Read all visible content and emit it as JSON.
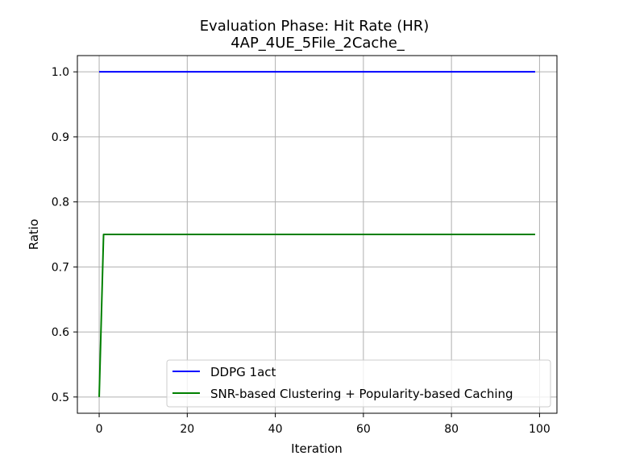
{
  "chart_data": {
    "type": "line",
    "title": "Evaluation Phase: Hit Rate (HR)",
    "subtitle": "4AP_4UE_5File_2Cache_",
    "xlabel": "Iteration",
    "ylabel": "Ratio",
    "xlim": [
      -4.95,
      103.95
    ],
    "ylim": [
      0.475,
      1.025
    ],
    "xticks": [
      0,
      20,
      40,
      60,
      80,
      100
    ],
    "xtick_labels": [
      "0",
      "20",
      "40",
      "60",
      "80",
      "100"
    ],
    "yticks": [
      0.5,
      0.6,
      0.7,
      0.8,
      0.9,
      1.0
    ],
    "ytick_labels": [
      "0.5",
      "0.6",
      "0.7",
      "0.8",
      "0.9",
      "1.0"
    ],
    "grid": true,
    "legend_position": "lower-right",
    "series": [
      {
        "name": "DDPG 1act",
        "color": "#0000ff",
        "points": [
          [
            0,
            1.0
          ],
          [
            99,
            1.0
          ]
        ]
      },
      {
        "name": "SNR-based Clustering + Popularity-based Caching",
        "color": "#008000",
        "points": [
          [
            0,
            0.5
          ],
          [
            1,
            0.75
          ],
          [
            99,
            0.75
          ]
        ]
      }
    ]
  }
}
